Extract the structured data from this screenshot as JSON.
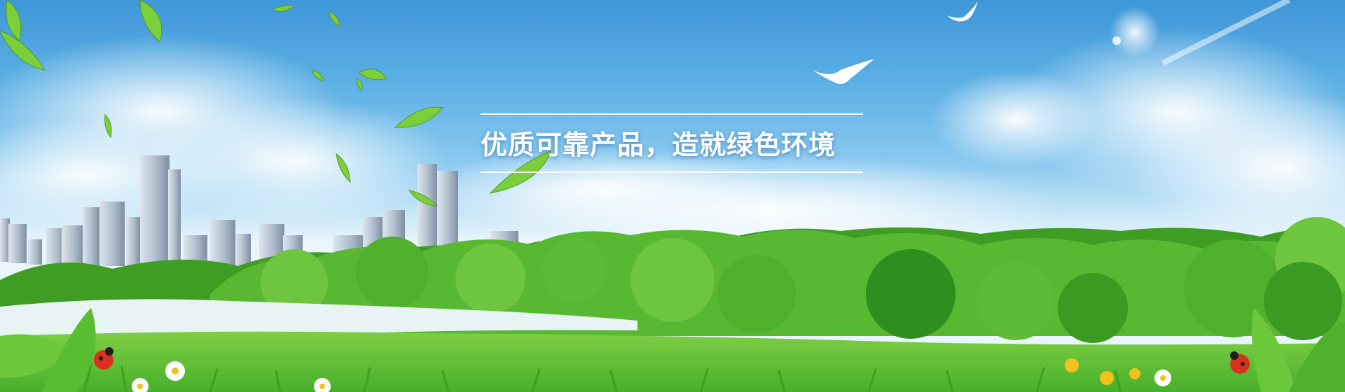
{
  "banner": {
    "slogan": "优质可靠产品，造就绿色环境"
  },
  "colors": {
    "sky_top": "#3f97d8",
    "sky_bottom": "#eaf6fc",
    "grass": "#5cc23a",
    "tree_dark": "#2f8f1e",
    "tree_light": "#7fd34a",
    "water": "#e8f3f4",
    "text": "#ffffff"
  },
  "icons": [
    "bird-icon",
    "leaf-icon",
    "ladybug-icon",
    "daisy-icon",
    "building-icon",
    "tree-icon"
  ]
}
